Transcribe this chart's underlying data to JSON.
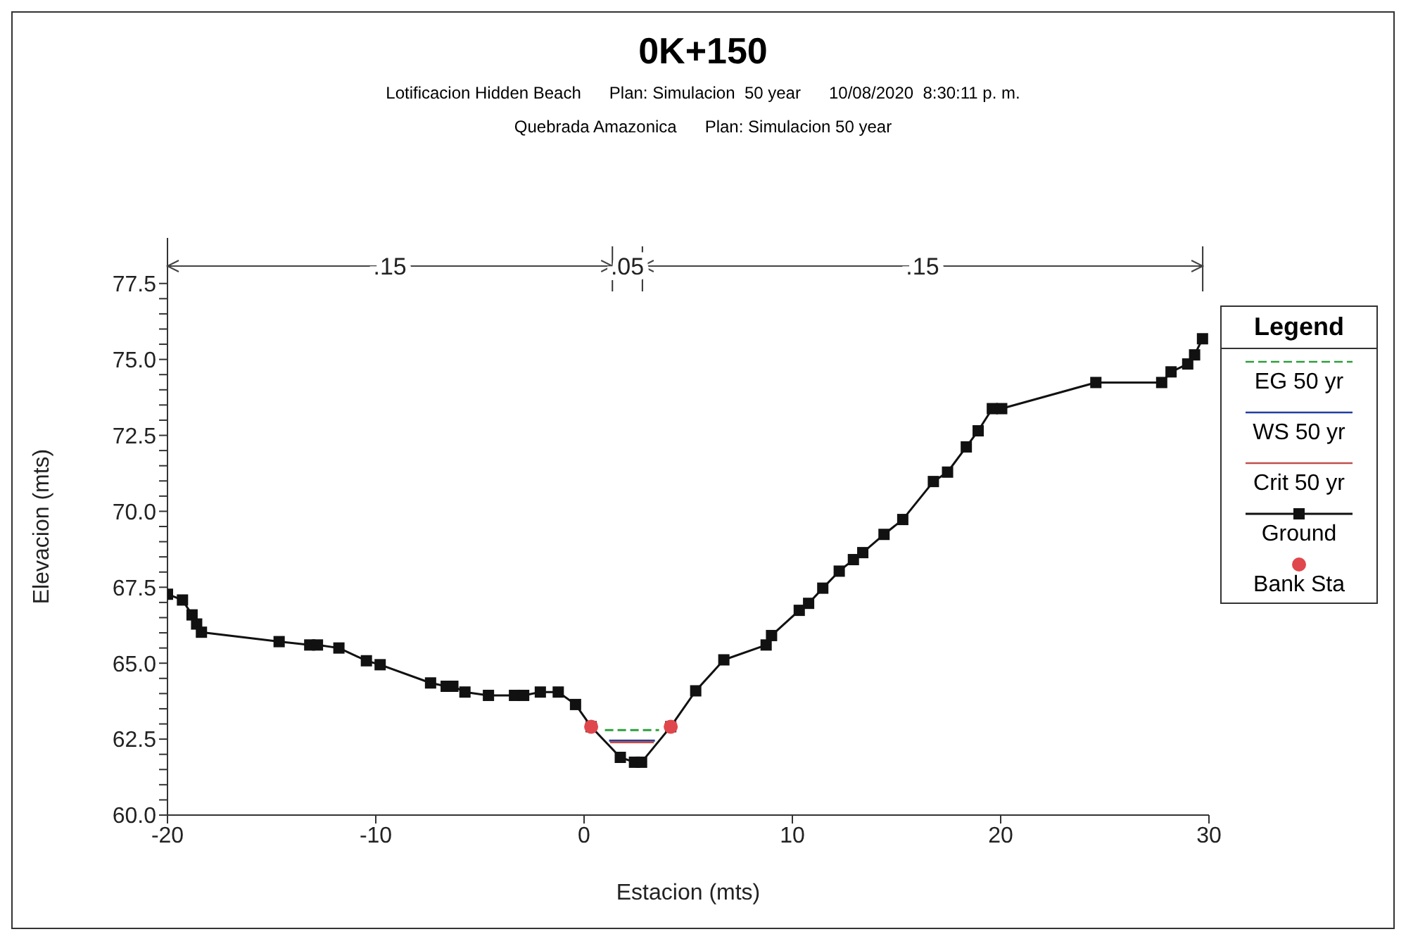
{
  "chart_data": {
    "type": "line",
    "title": "0K+150",
    "subtitle": "Lotificacion Hidden Beach      Plan: Simulacion  50 year      10/08/2020  8:30:11 p. m.\nQuebrada Amazonica      Plan: Simulacion 50 year",
    "xlabel": "Estacion (mts)",
    "ylabel": "Elevacion (mts)",
    "legend_title": "Legend",
    "legend": "right",
    "grid": false,
    "xlim": [
      -20,
      30
    ],
    "xticks": [
      -20,
      -10,
      0,
      10,
      20,
      30
    ],
    "ylim": [
      60,
      79
    ],
    "yticks": [
      {
        "value": 60,
        "label": "60.0"
      },
      {
        "value": 60.5,
        "label": null
      },
      {
        "value": 61,
        "label": null
      },
      {
        "value": 61.5,
        "label": null
      },
      {
        "value": 62,
        "label": null
      },
      {
        "value": 62.5,
        "label": "62.5"
      },
      {
        "value": 63,
        "label": null
      },
      {
        "value": 63.5,
        "label": null
      },
      {
        "value": 64,
        "label": null
      },
      {
        "value": 64.5,
        "label": null
      },
      {
        "value": 65,
        "label": "65.0"
      },
      {
        "value": 65.5,
        "label": null
      },
      {
        "value": 66,
        "label": null
      },
      {
        "value": 66.5,
        "label": null
      },
      {
        "value": 67,
        "label": null
      },
      {
        "value": 67.5,
        "label": "67.5"
      },
      {
        "value": 68,
        "label": null
      },
      {
        "value": 68.5,
        "label": null
      },
      {
        "value": 69,
        "label": null
      },
      {
        "value": 69.5,
        "label": null
      },
      {
        "value": 70,
        "label": "70.0"
      },
      {
        "value": 70.5,
        "label": null
      },
      {
        "value": 71,
        "label": null
      },
      {
        "value": 71.5,
        "label": null
      },
      {
        "value": 72,
        "label": null
      },
      {
        "value": 72.5,
        "label": "72.5"
      },
      {
        "value": 73,
        "label": null
      },
      {
        "value": 73.5,
        "label": null
      },
      {
        "value": 74,
        "label": null
      },
      {
        "value": 74.5,
        "label": null
      },
      {
        "value": 75,
        "label": "75.0"
      },
      {
        "value": 75.5,
        "label": null
      },
      {
        "value": 76,
        "label": null
      },
      {
        "value": 76.5,
        "label": null
      },
      {
        "value": 77,
        "label": null
      },
      {
        "value": 77.5,
        "label": "77.5"
      }
    ],
    "annotations": [
      ".15",
      ".05",
      ".15"
    ],
    "series": [
      {
        "name": "EG 50 yr",
        "type": "line",
        "color": "#2e9e3e",
        "line_style": "dashed",
        "marker": "none",
        "x": [
          1.0,
          3.6
        ],
        "values": [
          62.8,
          62.8
        ]
      },
      {
        "name": "WS 50 yr",
        "type": "line",
        "color": "#1f3fa0",
        "line_style": "solid",
        "marker": "none",
        "x": [
          1.2,
          3.4
        ],
        "values": [
          62.45,
          62.45
        ]
      },
      {
        "name": "Crit 50 yr",
        "type": "line",
        "color": "#c0504d",
        "line_style": "solid",
        "marker": "none",
        "x": [
          1.25,
          3.35
        ],
        "values": [
          62.4,
          62.4
        ]
      },
      {
        "name": "Ground",
        "type": "line",
        "color": "#111111",
        "line_style": "solid",
        "marker": "square",
        "x": [
          -20,
          -19.28,
          -18.82,
          -18.6,
          -18.37,
          -14.64,
          -13.17,
          -12.8,
          -11.77,
          -10.45,
          -9.79,
          -7.37,
          -6.62,
          -6.3,
          -5.72,
          -4.59,
          -3.34,
          -2.9,
          -2.1,
          -1.24,
          -0.41,
          0.34,
          1.74,
          2.42,
          2.76,
          4.16,
          5.36,
          6.71,
          8.74,
          9.0,
          10.33,
          10.78,
          11.46,
          12.25,
          12.93,
          13.38,
          14.4,
          15.3,
          16.77,
          17.45,
          18.35,
          18.92,
          19.6,
          20.05,
          24.57,
          27.73,
          28.18,
          28.98,
          29.31,
          29.69
        ],
        "values": [
          67.27,
          67.08,
          66.59,
          66.29,
          66.02,
          65.71,
          65.6,
          65.6,
          65.5,
          65.08,
          64.95,
          64.35,
          64.24,
          64.24,
          64.05,
          63.94,
          63.94,
          63.94,
          64.05,
          64.05,
          63.64,
          62.91,
          61.9,
          61.74,
          61.74,
          62.91,
          64.09,
          65.11,
          65.6,
          65.91,
          66.74,
          66.97,
          67.47,
          68.03,
          68.41,
          68.64,
          69.24,
          69.73,
          70.98,
          71.29,
          72.12,
          72.65,
          73.38,
          73.38,
          74.24,
          74.24,
          74.59,
          74.85,
          75.15,
          75.68
        ]
      },
      {
        "name": "Bank Sta",
        "type": "scatter",
        "color": "#e0474c",
        "marker": "circle",
        "x": [
          0.34,
          4.16
        ],
        "values": [
          62.91,
          62.91
        ]
      }
    ]
  }
}
